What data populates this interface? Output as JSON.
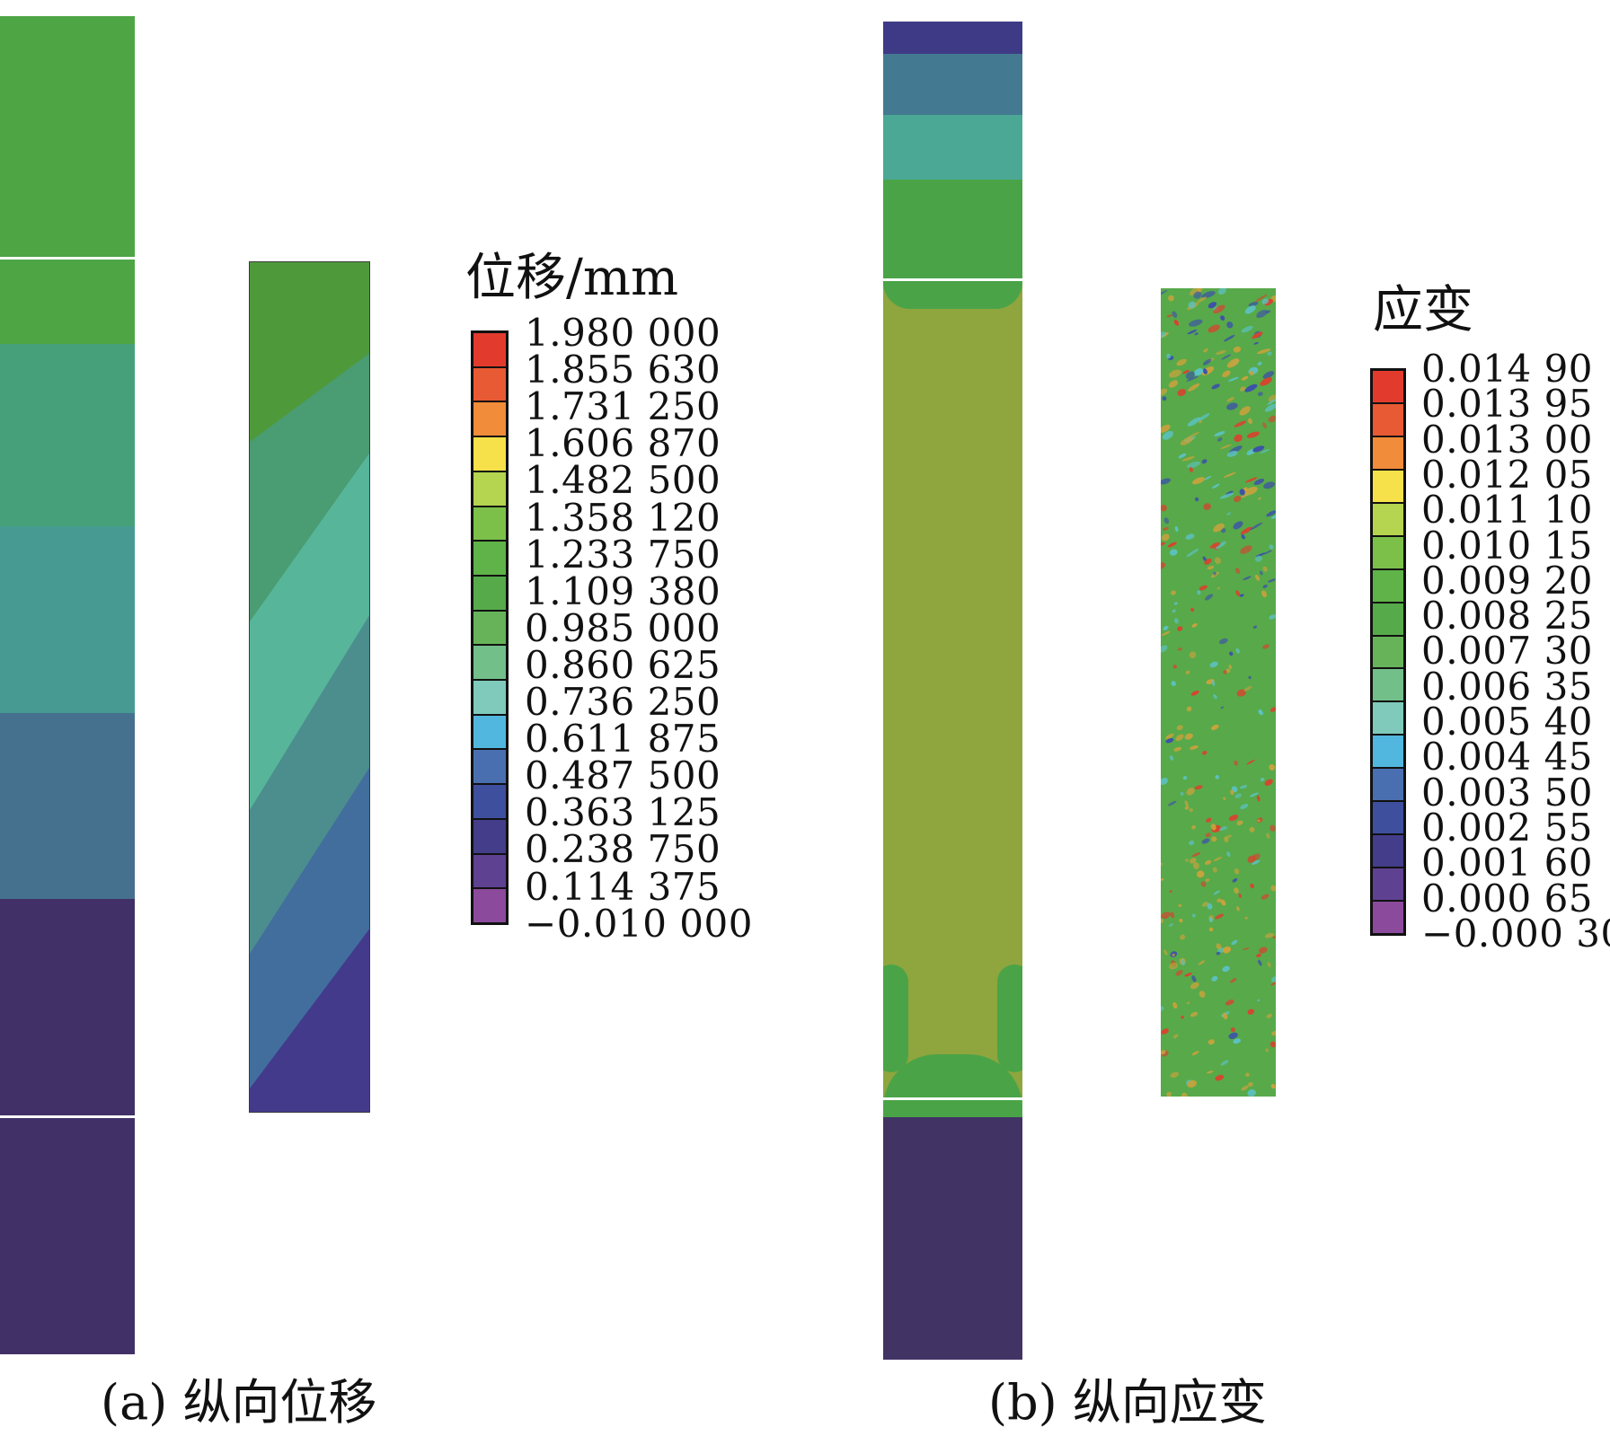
{
  "panel_a": {
    "caption": "(a) 纵向位移",
    "legend": {
      "title": "位移/mm",
      "labels": [
        "1.980 000",
        "1.855 630",
        "1.731 250",
        "1.606 870",
        "1.482 500",
        "1.358 120",
        "1.233 750",
        "1.109 380",
        "0.985 000",
        "0.860 625",
        "0.736 250",
        "0.611 875",
        "0.487 500",
        "0.363 125",
        "0.238 750",
        "0.114 375",
        "−0.010 000"
      ],
      "colors": [
        "#e23b2e",
        "#e85a33",
        "#f08c3a",
        "#f6e14a",
        "#b5d44f",
        "#7cc04a",
        "#5fb348",
        "#56aa4a",
        "#66b35a",
        "#72bf8a",
        "#7fcabb",
        "#52b7de",
        "#4a6fb0",
        "#3e4f9d",
        "#433d8a",
        "#5e4190",
        "#8b4a9c"
      ]
    },
    "bar_colors": {
      "green": "#4ea544",
      "teal_green": "#46a17a",
      "teal": "#479a92",
      "blue": "#45718e",
      "navy": "#413067"
    },
    "sample_colors": {
      "top": "#4e9a3b",
      "band2": "#4a9c72",
      "band3": "#57b59a",
      "band4": "#4c8d8e",
      "band5": "#426e9d",
      "bottom": "#433a8c"
    }
  },
  "panel_b": {
    "caption": "(b) 纵向应变",
    "legend": {
      "title": "应变",
      "labels": [
        "0.014 90",
        "0.013 95",
        "0.013 00",
        "0.012 05",
        "0.011 10",
        "0.010 15",
        "0.009 20",
        "0.008 25",
        "0.007 30",
        "0.006 35",
        "0.005 40",
        "0.004 45",
        "0.003 50",
        "0.002 55",
        "0.001 60",
        "0.000 65",
        "−0.000 30"
      ],
      "colors": [
        "#e23b2e",
        "#e85a33",
        "#f08c3a",
        "#f6e14a",
        "#b5d44f",
        "#7cc04a",
        "#5fb348",
        "#56aa4a",
        "#66b35a",
        "#72bf8a",
        "#7fcabb",
        "#52b7de",
        "#4a6fb0",
        "#3e4f9d",
        "#433d8a",
        "#5e4190",
        "#8b4a9c"
      ]
    },
    "bar_colors": {
      "navy_top": "#3f3a86",
      "steel": "#447a91",
      "teal": "#4ba894",
      "green": "#4aa447",
      "olive": "#8fa53e",
      "navy_bottom": "#423365"
    },
    "sample_colors": {
      "base": "#58a94a",
      "red": "#d6442e",
      "blue": "#3c52a8",
      "cyan": "#5cc2c4",
      "orange": "#c9a23c"
    }
  }
}
